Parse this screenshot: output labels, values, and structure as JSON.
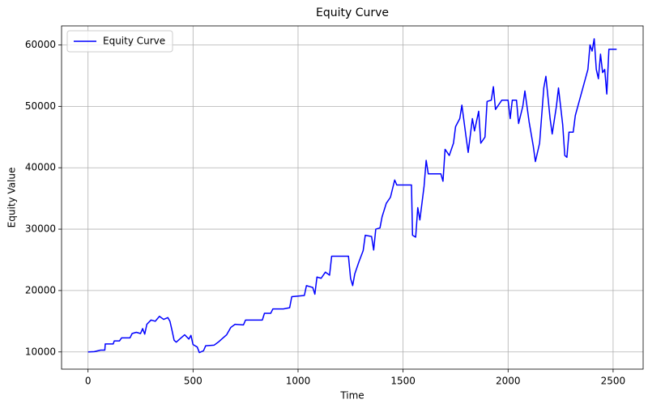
{
  "chart_data": {
    "type": "line",
    "title": "Equity Curve",
    "xlabel": "Time",
    "ylabel": "Equity Value",
    "xlim": [
      -126,
      2643
    ],
    "ylim": [
      7200,
      63100
    ],
    "xticks": [
      0,
      500,
      1000,
      1500,
      2000,
      2500
    ],
    "yticks": [
      10000,
      20000,
      30000,
      40000,
      50000,
      60000
    ],
    "grid": true,
    "legend": "upper left",
    "x": [
      0,
      30,
      60,
      80,
      82,
      120,
      125,
      150,
      160,
      200,
      210,
      230,
      250,
      260,
      270,
      280,
      300,
      320,
      340,
      360,
      380,
      390,
      400,
      410,
      420,
      440,
      460,
      480,
      490,
      500,
      520,
      530,
      550,
      560,
      600,
      620,
      640,
      660,
      680,
      700,
      740,
      750,
      830,
      840,
      870,
      880,
      930,
      960,
      970,
      1030,
      1040,
      1070,
      1080,
      1090,
      1110,
      1130,
      1150,
      1160,
      1240,
      1250,
      1260,
      1270,
      1290,
      1310,
      1320,
      1350,
      1360,
      1370,
      1390,
      1400,
      1420,
      1440,
      1460,
      1470,
      1540,
      1545,
      1560,
      1570,
      1580,
      1600,
      1610,
      1620,
      1680,
      1690,
      1700,
      1720,
      1740,
      1750,
      1770,
      1780,
      1800,
      1810,
      1830,
      1840,
      1860,
      1870,
      1890,
      1900,
      1920,
      1930,
      1940,
      1970,
      2000,
      2010,
      2020,
      2040,
      2050,
      2070,
      2080,
      2100,
      2120,
      2130,
      2150,
      2170,
      2180,
      2200,
      2210,
      2230,
      2240,
      2260,
      2270,
      2280,
      2290,
      2310,
      2320,
      2340,
      2360,
      2380,
      2390,
      2400,
      2410,
      2420,
      2430,
      2440,
      2450,
      2460,
      2470,
      2480,
      2517
    ],
    "series": [
      {
        "name": "Equity Curve",
        "color": "#0000ff",
        "values": [
          10000,
          10050,
          10300,
          10300,
          11300,
          11300,
          11800,
          11800,
          12300,
          12300,
          13000,
          13200,
          13000,
          13800,
          12900,
          14500,
          15200,
          15000,
          15800,
          15300,
          15600,
          15000,
          13500,
          11900,
          11600,
          12200,
          12800,
          12100,
          12700,
          11200,
          10800,
          9900,
          10200,
          11000,
          11100,
          11600,
          12200,
          12800,
          14000,
          14500,
          14400,
          15200,
          15200,
          16300,
          16300,
          17000,
          17000,
          17200,
          19000,
          19200,
          20800,
          20500,
          19400,
          22200,
          22000,
          23000,
          22500,
          25600,
          25600,
          22000,
          20800,
          22700,
          24700,
          26500,
          29000,
          28800,
          26600,
          30000,
          30200,
          32000,
          34200,
          35200,
          38000,
          37200,
          37200,
          29000,
          28700,
          33500,
          31500,
          37000,
          41200,
          39000,
          39000,
          37800,
          43000,
          42000,
          44000,
          46700,
          48000,
          50200,
          45000,
          42500,
          48000,
          46000,
          49200,
          44000,
          45000,
          50800,
          51000,
          53200,
          49500,
          51000,
          51000,
          48000,
          51000,
          51000,
          47200,
          50000,
          52500,
          47500,
          43500,
          41000,
          44000,
          53000,
          54900,
          48000,
          45500,
          50000,
          53000,
          47000,
          42000,
          41700,
          45800,
          45800,
          48500,
          51000,
          53500,
          56000,
          60000,
          59000,
          61000,
          56000,
          54500,
          58500,
          55500,
          56000,
          52000,
          59300,
          59300
        ]
      }
    ]
  }
}
